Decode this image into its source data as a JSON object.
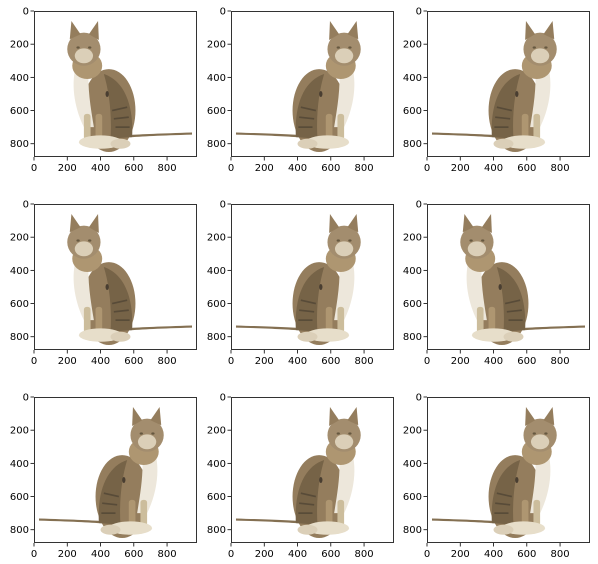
{
  "figure": {
    "grid_rows": 3,
    "grid_cols": 3,
    "x_ticks": [
      "0",
      "200",
      "400",
      "600",
      "800"
    ],
    "y_ticks": [
      "0",
      "200",
      "400",
      "600",
      "800"
    ],
    "x_tick_values": [
      0,
      200,
      400,
      600,
      800
    ],
    "y_tick_values": [
      0,
      200,
      400,
      600,
      800
    ],
    "xlim": [
      0,
      980
    ],
    "ylim": [
      880,
      0
    ]
  },
  "panels": [
    {
      "image": "cat-sitting-photo",
      "flipped": false,
      "shift_x": 0
    },
    {
      "image": "cat-sitting-photo",
      "flipped": true,
      "shift_x": 0
    },
    {
      "image": "cat-sitting-photo",
      "flipped": true,
      "shift_x": 0
    },
    {
      "image": "cat-sitting-photo",
      "flipped": false,
      "shift_x": 0
    },
    {
      "image": "cat-sitting-photo",
      "flipped": true,
      "shift_x": 0
    },
    {
      "image": "cat-sitting-photo",
      "flipped": false,
      "shift_x": 0
    },
    {
      "image": "cat-sitting-photo",
      "flipped": true,
      "shift_x": 0
    },
    {
      "image": "cat-sitting-photo",
      "flipped": true,
      "shift_x": 0
    },
    {
      "image": "cat-sitting-photo",
      "flipped": true,
      "shift_x": 0
    }
  ],
  "colors": {
    "fur_dark": "#6b5638",
    "fur_mid": "#8c7350",
    "fur_light": "#c8b894",
    "fur_white": "#ece6d8",
    "spot": "#3a2e20"
  }
}
